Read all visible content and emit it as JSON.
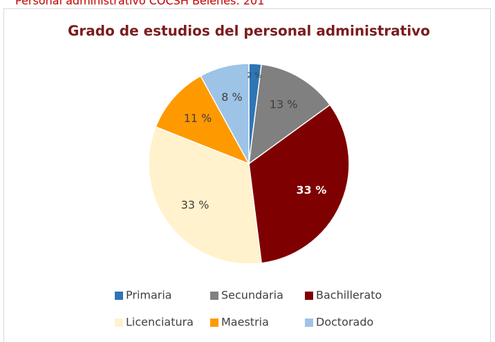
{
  "caption": "Personal administrativo COCSH Belenes: 201",
  "chart_data": {
    "type": "pie",
    "title": "Grado de estudios del personal administrativo",
    "categories": [
      "Primaria",
      "Secundaria",
      "Bachillerato",
      "Licenciatura",
      "Maestria",
      "Doctorado"
    ],
    "values": [
      2,
      13,
      33,
      33,
      11,
      8
    ],
    "value_labels": [
      "2 %",
      "13 %",
      "33 %",
      "33 %",
      "11 %",
      "8 %"
    ],
    "colors": [
      "#2e75b6",
      "#808080",
      "#7f0000",
      "#fff2cc",
      "#ff9900",
      "#9dc3e6"
    ],
    "legend": "bottom"
  }
}
